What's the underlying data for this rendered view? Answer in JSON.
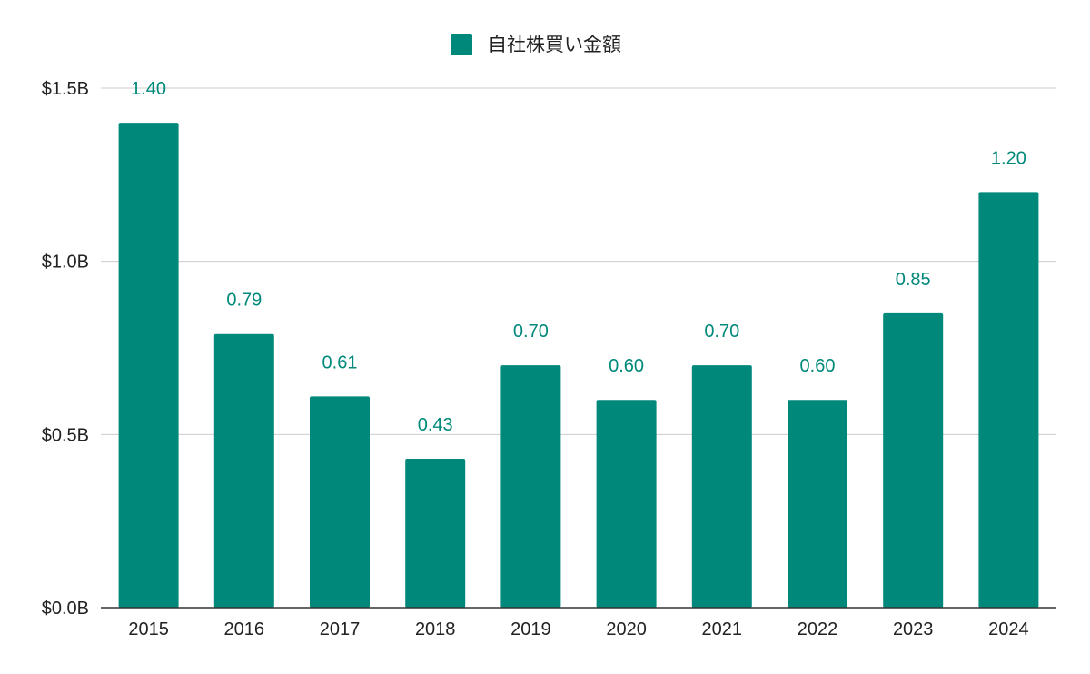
{
  "chart_data": {
    "type": "bar",
    "categories": [
      "2015",
      "2016",
      "2017",
      "2018",
      "2019",
      "2020",
      "2021",
      "2022",
      "2023",
      "2024"
    ],
    "series": [
      {
        "name": "自社株買い金額",
        "values": [
          1.4,
          0.79,
          0.61,
          0.43,
          0.7,
          0.6,
          0.7,
          0.6,
          0.85,
          1.2
        ],
        "data_labels": [
          "1.40",
          "0.79",
          "0.61",
          "0.43",
          "0.70",
          "0.60",
          "0.70",
          "0.60",
          "0.85",
          "1.20"
        ]
      }
    ],
    "y_ticks": [
      0,
      0.5,
      1.0,
      1.5
    ],
    "y_tick_labels": [
      "$0.0B",
      "$0.5B",
      "$1.0B",
      "$1.5B"
    ],
    "ylim": [
      0,
      1.5
    ],
    "grid": true,
    "legend_position": "top",
    "colors": {
      "bar": "#00897b",
      "data_label": "#00897b",
      "grid": "#cccccc",
      "axis": "#333333"
    }
  }
}
